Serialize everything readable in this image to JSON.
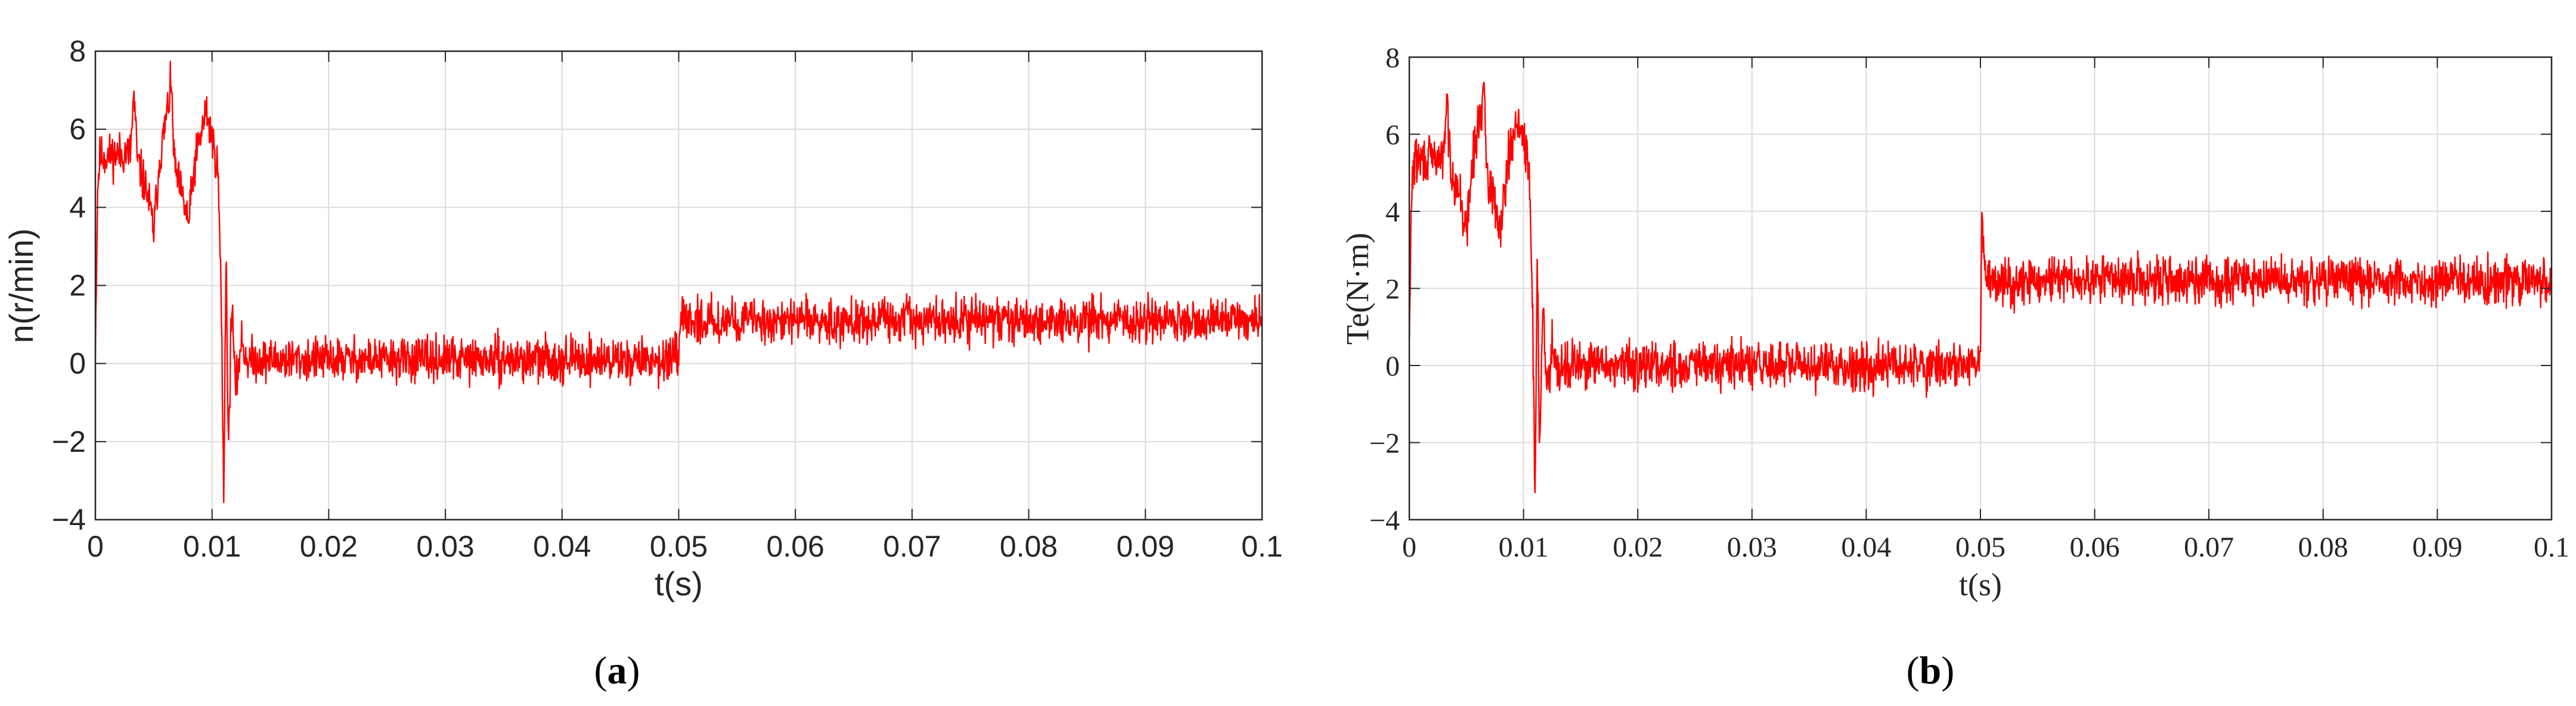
{
  "chart_data": [
    {
      "type": "line",
      "panel_label": "(a)",
      "panel_letter": "a",
      "title": "",
      "xlabel": "t(s)",
      "ylabel": "n(r/min)",
      "xlim": [
        0,
        0.1
      ],
      "ylim": [
        -4,
        8
      ],
      "xticks": [
        0,
        0.01,
        0.02,
        0.03,
        0.04,
        0.05,
        0.06,
        0.07,
        0.08,
        0.09,
        0.1
      ],
      "xtick_labels": [
        "0",
        "0.01",
        "0.02",
        "0.03",
        "0.04",
        "0.05",
        "0.06",
        "0.07",
        "0.08",
        "0.09",
        "0.1"
      ],
      "yticks": [
        -4,
        -2,
        0,
        2,
        4,
        6,
        8
      ],
      "ytick_labels": [
        "−4",
        "−2",
        "0",
        "2",
        "4",
        "6",
        "8"
      ],
      "grid": true,
      "legend": "none",
      "series": [
        {
          "color": "#ff0000",
          "noise_amplitude": 0.55,
          "points": [
            [
              0,
              0.5
            ],
            [
              0.0002,
              4.6
            ],
            [
              0.0004,
              5.3
            ],
            [
              0.003,
              5.4
            ],
            [
              0.0033,
              6.9
            ],
            [
              0.0036,
              5.2
            ],
            [
              0.0045,
              4.3
            ],
            [
              0.005,
              3.4
            ],
            [
              0.0055,
              5.2
            ],
            [
              0.0065,
              7.1
            ],
            [
              0.0068,
              5.0
            ],
            [
              0.008,
              3.6
            ],
            [
              0.0085,
              5.1
            ],
            [
              0.0095,
              6.5
            ],
            [
              0.0105,
              5.0
            ],
            [
              0.0108,
              1.5
            ],
            [
              0.011,
              -3.6
            ],
            [
              0.0112,
              3.1
            ],
            [
              0.0114,
              -2.3
            ],
            [
              0.0117,
              1.8
            ],
            [
              0.012,
              -0.8
            ],
            [
              0.0125,
              0.6
            ],
            [
              0.013,
              0.1
            ],
            [
              0.05,
              0.1
            ],
            [
              0.0502,
              1.1
            ],
            [
              0.1,
              1.1
            ]
          ]
        }
      ]
    },
    {
      "type": "line",
      "panel_label": "(b)",
      "panel_letter": "b",
      "title": "",
      "xlabel": "t(s)",
      "ylabel": "Te(N·m)",
      "xlim": [
        0,
        0.1
      ],
      "ylim": [
        -4,
        8
      ],
      "xticks": [
        0,
        0.01,
        0.02,
        0.03,
        0.04,
        0.05,
        0.06,
        0.07,
        0.08,
        0.09,
        0.1
      ],
      "xtick_labels": [
        "0",
        "0.01",
        "0.02",
        "0.03",
        "0.04",
        "0.05",
        "0.06",
        "0.07",
        "0.08",
        "0.09",
        "0.1"
      ],
      "yticks": [
        -4,
        -2,
        0,
        2,
        4,
        6,
        8
      ],
      "ytick_labels": [
        "−4",
        "−2",
        "0",
        "2",
        "4",
        "6",
        "8"
      ],
      "grid": true,
      "legend": "none",
      "series": [
        {
          "color": "#ff0000",
          "noise_amplitude": 0.6,
          "points": [
            [
              0,
              0.5
            ],
            [
              0.0002,
              4.6
            ],
            [
              0.0004,
              5.3
            ],
            [
              0.003,
              5.4
            ],
            [
              0.0033,
              6.9
            ],
            [
              0.0036,
              5.2
            ],
            [
              0.0045,
              4.3
            ],
            [
              0.005,
              3.4
            ],
            [
              0.0055,
              5.2
            ],
            [
              0.0065,
              7.1
            ],
            [
              0.0068,
              5.0
            ],
            [
              0.008,
              3.6
            ],
            [
              0.0085,
              5.1
            ],
            [
              0.0095,
              6.5
            ],
            [
              0.0105,
              5.0
            ],
            [
              0.0108,
              1.5
            ],
            [
              0.011,
              -3.6
            ],
            [
              0.0112,
              3.1
            ],
            [
              0.0114,
              -2.3
            ],
            [
              0.0117,
              1.8
            ],
            [
              0.012,
              -0.8
            ],
            [
              0.0125,
              0.6
            ],
            [
              0.013,
              0.0
            ],
            [
              0.05,
              0.0
            ],
            [
              0.0501,
              3.8
            ],
            [
              0.0505,
              2.2
            ],
            [
              0.1,
              2.2
            ]
          ]
        }
      ]
    }
  ]
}
